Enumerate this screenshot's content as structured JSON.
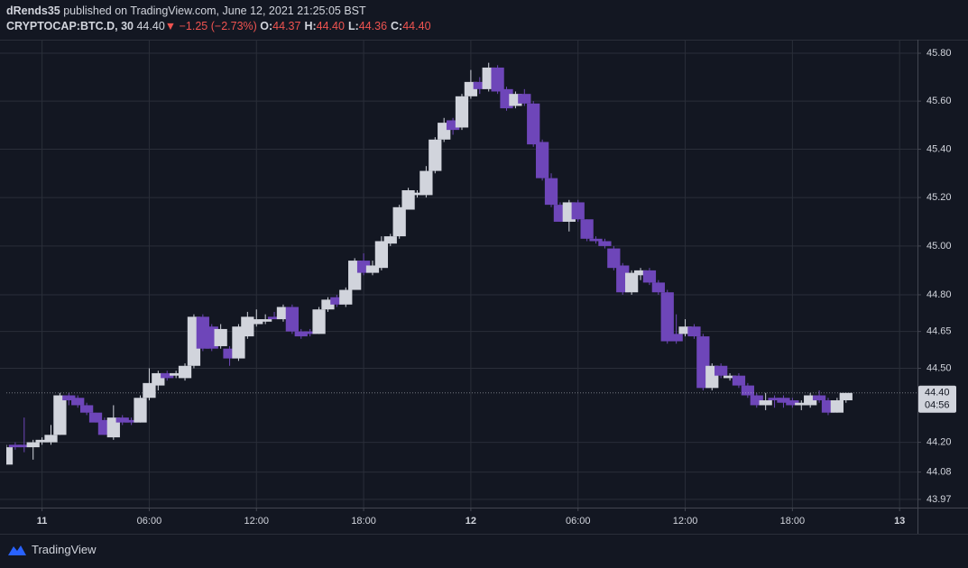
{
  "header": {
    "author": "dRends35",
    "published": "published on TradingView.com, June 12, 2021 21:25:05 BST",
    "symbol": "CRYPTOCAP:BTC.D, 30",
    "price": "44.40",
    "arrow": "▼",
    "change": "−1.25 (−2.73%)",
    "ohlc": [
      {
        "label": "O:",
        "value": "44.37"
      },
      {
        "label": "H:",
        "value": "44.40"
      },
      {
        "label": "L:",
        "value": "44.36"
      },
      {
        "label": "C:",
        "value": "44.40"
      }
    ]
  },
  "footer": {
    "brand": "TradingView"
  },
  "chart_data": {
    "type": "candlestick",
    "log_scale": true,
    "grid": true,
    "up_color": "#d1d4dc",
    "down_color": "#6e46b9",
    "x": [
      -2,
      -1.5,
      -1,
      -0.5,
      0,
      0.5,
      1,
      1.5,
      2,
      2.5,
      3,
      3.5,
      4,
      4.5,
      5,
      5.5,
      6,
      6.5,
      7,
      7.5,
      8,
      8.5,
      9,
      9.5,
      10,
      10.5,
      11,
      11.5,
      12,
      12.5,
      13,
      13.5,
      14,
      14.5,
      15,
      15.5,
      16,
      16.5,
      17,
      17.5,
      18,
      18.5,
      19,
      19.5,
      20,
      20.5,
      21,
      21.5,
      22,
      22.5,
      23,
      23.5,
      24,
      24.5,
      25,
      25.5,
      26,
      26.5,
      27,
      27.5,
      28,
      28.5,
      29,
      29.5,
      30,
      30.5,
      31,
      31.5,
      32,
      32.5,
      33,
      33.5,
      34,
      34.5,
      35,
      35.5,
      36,
      36.5,
      37,
      37.5,
      38,
      38.5,
      39,
      39.5,
      40,
      40.5,
      41,
      41.5,
      42,
      42.5,
      43,
      43.5,
      44,
      44.5,
      45
    ],
    "open": [
      44.11,
      44.19,
      44.19,
      44.18,
      44.2,
      44.2,
      44.23,
      44.39,
      44.38,
      44.35,
      44.32,
      44.29,
      44.22,
      44.3,
      44.29,
      44.28,
      44.38,
      44.43,
      44.48,
      44.47,
      44.46,
      44.51,
      44.71,
      44.67,
      44.59,
      44.58,
      44.54,
      44.63,
      44.68,
      44.69,
      44.71,
      44.7,
      44.75,
      44.65,
      44.65,
      44.64,
      44.74,
      44.79,
      44.76,
      44.82,
      44.94,
      44.89,
      44.91,
      45.01,
      45.04,
      45.15,
      45.21,
      45.21,
      45.31,
      45.44,
      45.52,
      45.49,
      45.62,
      45.68,
      45.65,
      45.74,
      45.65,
      45.58,
      45.63,
      45.59,
      45.43,
      45.28,
      45.17,
      45.1,
      45.18,
      45.11,
      45.03,
      45.02,
      44.99,
      44.92,
      44.81,
      44.88,
      44.9,
      44.85,
      44.81,
      44.64,
      44.64,
      44.67,
      44.63,
      44.42,
      44.51,
      44.46,
      44.47,
      44.43,
      44.39,
      44.35,
      44.38,
      44.38,
      44.37,
      44.35,
      44.35,
      44.39,
      44.37,
      44.32,
      44.37
    ],
    "high": [
      44.19,
      44.2,
      44.3,
      44.21,
      44.22,
      44.27,
      44.4,
      44.4,
      44.39,
      44.36,
      44.32,
      44.3,
      44.35,
      44.31,
      44.3,
      44.39,
      44.5,
      44.49,
      44.49,
      44.49,
      44.52,
      44.72,
      44.72,
      44.68,
      44.68,
      44.59,
      44.68,
      44.73,
      44.74,
      44.72,
      44.73,
      44.76,
      44.76,
      44.66,
      44.66,
      44.75,
      44.79,
      44.8,
      44.83,
      44.95,
      44.97,
      44.94,
      45.04,
      45.05,
      45.17,
      45.24,
      45.23,
      45.33,
      45.45,
      45.53,
      45.53,
      45.63,
      45.73,
      45.7,
      45.76,
      45.75,
      45.66,
      45.64,
      45.65,
      45.6,
      45.44,
      45.3,
      45.18,
      45.19,
      45.19,
      45.11,
      45.04,
      45.03,
      45.0,
      44.93,
      44.9,
      44.91,
      44.91,
      44.86,
      44.82,
      44.72,
      44.7,
      44.68,
      44.64,
      44.52,
      44.52,
      44.48,
      44.48,
      44.44,
      44.4,
      44.4,
      44.39,
      44.39,
      44.38,
      44.37,
      44.4,
      44.41,
      44.38,
      44.38,
      44.4
    ],
    "low": [
      44.11,
      44.17,
      44.16,
      44.13,
      44.19,
      44.19,
      44.23,
      44.35,
      44.34,
      44.31,
      44.28,
      44.23,
      44.21,
      44.27,
      44.27,
      44.28,
      44.37,
      44.41,
      44.45,
      44.46,
      44.45,
      44.5,
      44.57,
      44.57,
      44.58,
      44.51,
      44.53,
      44.62,
      44.67,
      44.68,
      44.7,
      44.69,
      44.64,
      44.62,
      44.63,
      44.64,
      44.73,
      44.75,
      44.75,
      44.82,
      44.88,
      44.88,
      44.9,
      45.0,
      45.03,
      45.15,
      45.2,
      45.2,
      45.3,
      45.43,
      45.46,
      45.48,
      45.61,
      45.63,
      45.64,
      45.63,
      45.56,
      45.57,
      45.58,
      45.41,
      45.27,
      45.16,
      45.1,
      45.06,
      45.1,
      45.02,
      45.01,
      44.99,
      44.9,
      44.8,
      44.8,
      44.86,
      44.84,
      44.8,
      44.6,
      44.6,
      44.63,
      44.62,
      44.41,
      44.41,
      44.46,
      44.45,
      44.42,
      44.38,
      44.34,
      44.33,
      44.34,
      44.34,
      44.34,
      44.33,
      44.34,
      44.36,
      44.31,
      44.32,
      44.36
    ],
    "close": [
      44.18,
      44.18,
      44.18,
      44.2,
      44.21,
      44.23,
      44.39,
      44.37,
      44.35,
      44.32,
      44.28,
      44.23,
      44.3,
      44.28,
      44.28,
      44.38,
      44.44,
      44.48,
      44.46,
      44.48,
      44.51,
      44.71,
      44.58,
      44.58,
      44.66,
      44.54,
      44.67,
      44.71,
      44.7,
      44.7,
      44.7,
      44.75,
      44.65,
      44.63,
      44.64,
      44.74,
      44.78,
      44.76,
      44.82,
      44.94,
      44.89,
      44.92,
      45.02,
      45.04,
      45.16,
      45.23,
      45.22,
      45.31,
      45.44,
      45.51,
      45.48,
      45.62,
      45.68,
      45.65,
      45.74,
      45.64,
      45.57,
      45.63,
      45.59,
      45.42,
      45.28,
      45.17,
      45.1,
      45.18,
      45.11,
      45.03,
      45.02,
      45.0,
      44.91,
      44.81,
      44.89,
      44.9,
      44.85,
      44.81,
      44.61,
      44.61,
      44.67,
      44.63,
      44.42,
      44.51,
      44.47,
      44.47,
      44.43,
      44.39,
      44.35,
      44.37,
      44.37,
      44.36,
      44.35,
      44.36,
      44.39,
      44.37,
      44.32,
      44.37,
      44.4
    ],
    "xlim": [
      -2,
      49
    ],
    "xticks": [
      {
        "value": 0,
        "label": "11"
      },
      {
        "value": 6,
        "label": "06:00"
      },
      {
        "value": 12,
        "label": "12:00"
      },
      {
        "value": 18,
        "label": "18:00"
      },
      {
        "value": 24,
        "label": "12"
      },
      {
        "value": 30,
        "label": "06:00"
      },
      {
        "value": 36,
        "label": "12:00"
      },
      {
        "value": 42,
        "label": "18:00"
      },
      {
        "value": 48,
        "label": "13"
      }
    ],
    "ylim": [
      43.937,
      45.853
    ],
    "yticks": [
      {
        "value": 45.8,
        "label": "45.80"
      },
      {
        "value": 45.6,
        "label": "45.60"
      },
      {
        "value": 45.4,
        "label": "45.40"
      },
      {
        "value": 45.2,
        "label": "45.20"
      },
      {
        "value": 45.0,
        "label": "45.00"
      },
      {
        "value": 44.8,
        "label": "44.80"
      },
      {
        "value": 44.65,
        "label": "44.65"
      },
      {
        "value": 44.5,
        "label": "44.50"
      },
      {
        "value": 44.2,
        "label": "44.20"
      },
      {
        "value": 44.08,
        "label": "44.08"
      },
      {
        "value": 43.97,
        "label": "43.97"
      }
    ],
    "last_price": {
      "value": 44.4,
      "label": "44.40"
    },
    "countdown": "04:56"
  }
}
